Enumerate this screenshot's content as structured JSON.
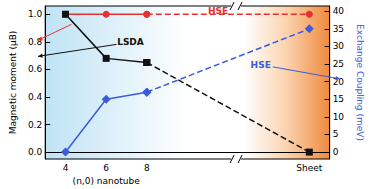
{
  "chart_data": {
    "type": "line",
    "categories": [
      "4",
      "6",
      "8",
      null,
      null,
      null,
      "Sheet"
    ],
    "x_label": "(n,0) nanotube",
    "y_label": "Magnetic moment (μB)",
    "y2_label": "Exchange Coupling (meV)",
    "series": [
      {
        "name": "HSE",
        "color": "#e8312f",
        "marker": "circle",
        "values": [
          1.0,
          1.0,
          1.0,
          null,
          null,
          null,
          1.0
        ]
      },
      {
        "name": "LSDA",
        "color": "#111111",
        "marker": "square",
        "values": [
          1.0,
          0.68,
          0.65,
          null,
          null,
          null,
          0.0
        ]
      },
      {
        "name": "HSE",
        "color": "#3b5bdb",
        "marker": "diamond",
        "axis": "y2",
        "values": [
          0,
          15,
          17,
          null,
          null,
          null,
          35
        ]
      }
    ],
    "ylim": [
      -0.05,
      1.06
    ],
    "yticks": [
      {
        "value": 0,
        "label": "0.0"
      },
      0.2,
      0.4,
      0.6,
      0.8,
      {
        "value": 1,
        "label": "1.0"
      }
    ],
    "y2lim": [
      -2,
      41.5
    ],
    "y2ticks": [
      0,
      5,
      10,
      15,
      20,
      25,
      30,
      35,
      40
    ],
    "grid": false
  }
}
